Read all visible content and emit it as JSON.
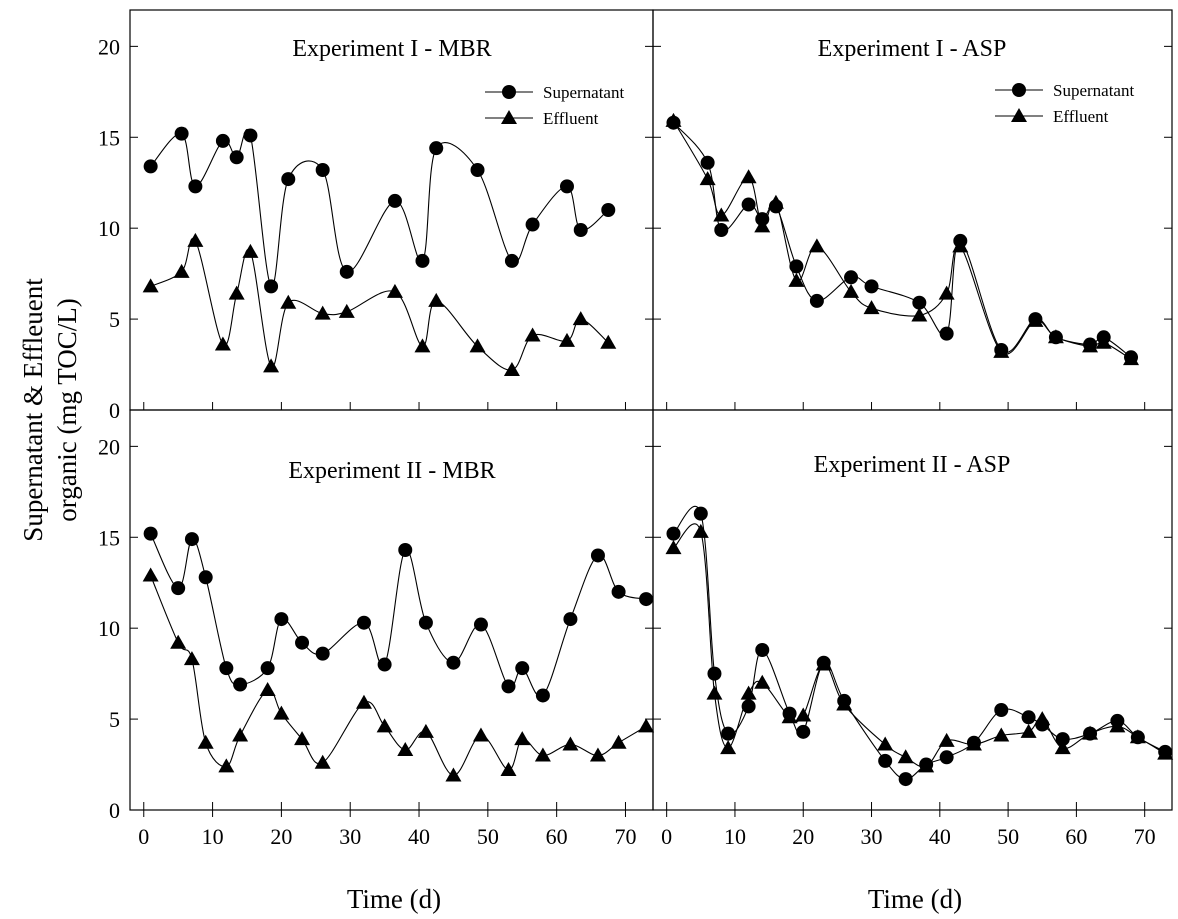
{
  "figure": {
    "ylabel_line1": "Supernatant & Effleuent",
    "ylabel_line2": "organic (mg TOC/L)",
    "xlabel": "Time (d)"
  },
  "chart_data": [
    {
      "type": "line",
      "title": "Experiment I - MBR",
      "xlim": [
        -2,
        74
      ],
      "ylim": [
        0,
        22
      ],
      "x_ticks": [
        0,
        10,
        20,
        30,
        40,
        50,
        60,
        70
      ],
      "y_ticks": [
        0,
        5,
        10,
        15,
        20
      ],
      "show_x_tick_labels": false,
      "show_y_tick_labels": true,
      "legend": "top-right",
      "series": [
        {
          "name": "Supernatant",
          "marker": "circle",
          "x": [
            1,
            5.5,
            7.5,
            11.5,
            13.5,
            15.5,
            18.5,
            21,
            26,
            29.5,
            36.5,
            40.5,
            42.5,
            48.5,
            53.5,
            56.5,
            61.5,
            63.5,
            67.5
          ],
          "y": [
            13.4,
            15.2,
            12.3,
            14.8,
            13.9,
            15.1,
            6.8,
            12.7,
            13.2,
            7.6,
            11.5,
            8.2,
            14.4,
            13.2,
            8.2,
            10.2,
            12.3,
            9.9,
            11.0
          ]
        },
        {
          "name": "Effluent",
          "marker": "triangle",
          "x": [
            1,
            5.5,
            7.5,
            11.5,
            13.5,
            15.5,
            18.5,
            21,
            26,
            29.5,
            36.5,
            40.5,
            42.5,
            48.5,
            53.5,
            56.5,
            61.5,
            63.5,
            67.5
          ],
          "y": [
            6.8,
            7.6,
            9.3,
            3.6,
            6.4,
            8.7,
            2.4,
            5.9,
            5.3,
            5.4,
            6.5,
            3.5,
            6.0,
            3.5,
            2.2,
            4.1,
            3.8,
            5.0,
            3.7
          ]
        }
      ]
    },
    {
      "type": "line",
      "title": "Experiment I - ASP",
      "xlim": [
        -2,
        74
      ],
      "ylim": [
        0,
        22
      ],
      "x_ticks": [
        0,
        10,
        20,
        30,
        40,
        50,
        60,
        70
      ],
      "y_ticks": [
        0,
        5,
        10,
        15,
        20
      ],
      "show_x_tick_labels": false,
      "show_y_tick_labels": false,
      "legend": "top-right",
      "series": [
        {
          "name": "Supernatant",
          "marker": "circle",
          "x": [
            1,
            6,
            8,
            12,
            14,
            16,
            19,
            22,
            27,
            30,
            37,
            41,
            43,
            49,
            54,
            57,
            62,
            64,
            68
          ],
          "y": [
            15.8,
            13.6,
            9.9,
            11.3,
            10.5,
            11.2,
            7.9,
            6.0,
            7.3,
            6.8,
            5.9,
            4.2,
            9.3,
            3.3,
            5.0,
            4.0,
            3.6,
            4.0,
            2.9
          ]
        },
        {
          "name": "Effluent",
          "marker": "triangle",
          "x": [
            1,
            6,
            8,
            12,
            14,
            16,
            19,
            22,
            27,
            30,
            37,
            41,
            43,
            49,
            54,
            57,
            62,
            64,
            68
          ],
          "y": [
            15.9,
            12.7,
            10.7,
            12.8,
            10.1,
            11.4,
            7.1,
            9.0,
            6.5,
            5.6,
            5.2,
            6.4,
            9.0,
            3.2,
            4.9,
            4.0,
            3.5,
            3.7,
            2.8
          ]
        }
      ]
    },
    {
      "type": "line",
      "title": "Experiment II - MBR",
      "xlim": [
        -2,
        74
      ],
      "ylim": [
        0,
        22
      ],
      "x_ticks": [
        0,
        10,
        20,
        30,
        40,
        50,
        60,
        70
      ],
      "y_ticks": [
        0,
        5,
        10,
        15,
        20
      ],
      "show_x_tick_labels": true,
      "show_y_tick_labels": true,
      "legend": "none",
      "series": [
        {
          "name": "Supernatant",
          "marker": "circle",
          "x": [
            1,
            5,
            7,
            9,
            12,
            14,
            18,
            20,
            23,
            26,
            32,
            35,
            38,
            41,
            45,
            49,
            53,
            55,
            58,
            62,
            66,
            69,
            73
          ],
          "y": [
            15.2,
            12.2,
            14.9,
            12.8,
            7.8,
            6.9,
            7.8,
            10.5,
            9.2,
            8.6,
            10.3,
            8.0,
            14.3,
            10.3,
            8.1,
            10.2,
            6.8,
            7.8,
            6.3,
            10.5,
            14.0,
            12.0,
            11.6
          ]
        },
        {
          "name": "Effluent",
          "marker": "triangle",
          "x": [
            1,
            5,
            7,
            9,
            12,
            14,
            18,
            20,
            23,
            26,
            32,
            35,
            38,
            41,
            45,
            49,
            53,
            55,
            58,
            62,
            66,
            69,
            73
          ],
          "y": [
            12.9,
            9.2,
            8.3,
            3.7,
            2.4,
            4.1,
            6.6,
            5.3,
            3.9,
            2.6,
            5.9,
            4.6,
            3.3,
            4.3,
            1.9,
            4.1,
            2.2,
            3.9,
            3.0,
            3.6,
            3.0,
            3.7,
            4.6
          ]
        }
      ]
    },
    {
      "type": "line",
      "title": "Experiment II - ASP",
      "xlim": [
        -2,
        74
      ],
      "ylim": [
        0,
        22
      ],
      "x_ticks": [
        0,
        10,
        20,
        30,
        40,
        50,
        60,
        70
      ],
      "y_ticks": [
        0,
        5,
        10,
        15,
        20
      ],
      "show_x_tick_labels": true,
      "show_y_tick_labels": false,
      "legend": "none",
      "series": [
        {
          "name": "Supernatant",
          "marker": "circle",
          "x": [
            1,
            5,
            7,
            9,
            12,
            14,
            18,
            20,
            23,
            26,
            32,
            35,
            38,
            41,
            45,
            49,
            53,
            55,
            58,
            62,
            66,
            69,
            73
          ],
          "y": [
            15.2,
            16.3,
            7.5,
            4.2,
            5.7,
            8.8,
            5.3,
            4.3,
            8.1,
            6.0,
            2.7,
            1.7,
            2.5,
            2.9,
            3.7,
            5.5,
            5.1,
            4.7,
            3.9,
            4.2,
            4.9,
            4.0,
            3.2
          ]
        },
        {
          "name": "Effluent",
          "marker": "triangle",
          "x": [
            1,
            5,
            7,
            9,
            12,
            14,
            18,
            20,
            23,
            26,
            32,
            35,
            38,
            41,
            45,
            49,
            53,
            55,
            58,
            62,
            66,
            69,
            73
          ],
          "y": [
            14.4,
            15.3,
            6.4,
            3.4,
            6.4,
            7.0,
            5.1,
            5.2,
            8.0,
            5.8,
            3.6,
            2.9,
            2.4,
            3.8,
            3.6,
            4.1,
            4.3,
            5.0,
            3.4,
            4.2,
            4.6,
            4.0,
            3.1
          ]
        }
      ]
    }
  ]
}
